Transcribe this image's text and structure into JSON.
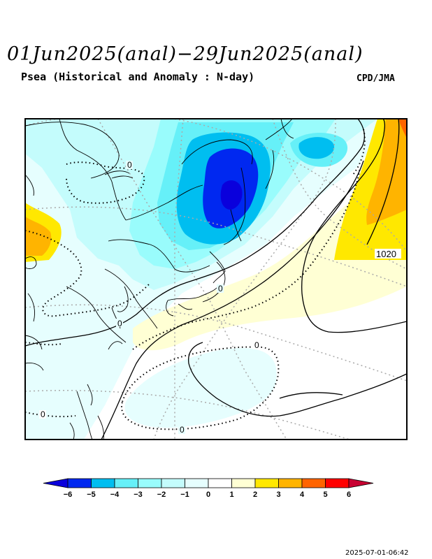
{
  "header": {
    "title": "01Jun2025(anal)−29Jun2025(anal)",
    "subtitle": "Psea (Historical and Anomaly : N-day)",
    "agency": "CPD/JMA"
  },
  "map": {
    "contour_labels": [
      "0",
      "0",
      "0",
      "0",
      "0",
      "0",
      "1020"
    ]
  },
  "colorbar": {
    "ticks": [
      "−6",
      "−5",
      "−4",
      "−3",
      "−2",
      "−1",
      "0",
      "1",
      "2",
      "3",
      "4",
      "5",
      "6"
    ],
    "colors": [
      "#0a00dc",
      "#0028f0",
      "#00bef0",
      "#66f0f8",
      "#99fcfc",
      "#c4fcfc",
      "#e6fefe",
      "#ffffff",
      "#ffffd4",
      "#ffe800",
      "#ffb400",
      "#ff6400",
      "#ff0000",
      "#c80032"
    ]
  },
  "timestamp": "2025-07-01-06:42"
}
